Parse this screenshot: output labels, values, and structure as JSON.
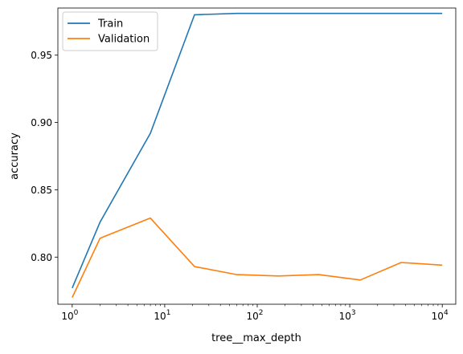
{
  "chart_data": {
    "type": "line",
    "xscale": "log",
    "xlabel": "tree__max_depth",
    "ylabel": "accuracy",
    "xlim": [
      0.7,
      14000
    ],
    "ylim": [
      0.765,
      0.985
    ],
    "xticks": [
      {
        "value": 1,
        "base": "10",
        "exp": "0"
      },
      {
        "value": 10,
        "base": "10",
        "exp": "1"
      },
      {
        "value": 100,
        "base": "10",
        "exp": "2"
      },
      {
        "value": 1000,
        "base": "10",
        "exp": "3"
      },
      {
        "value": 10000,
        "base": "10",
        "exp": "4"
      }
    ],
    "yticks": [
      0.8,
      0.85,
      0.9,
      0.95
    ],
    "ytick_labels": [
      "0.80",
      "0.85",
      "0.90",
      "0.95"
    ],
    "grid": false,
    "legend": "top-left",
    "series": [
      {
        "name": "Train",
        "color": "#1f77b4",
        "x": [
          1,
          2,
          7,
          21,
          60,
          170,
          460,
          1300,
          3600,
          10000
        ],
        "y": [
          0.777,
          0.826,
          0.892,
          0.98,
          0.981,
          0.981,
          0.981,
          0.981,
          0.981,
          0.981
        ]
      },
      {
        "name": "Validation",
        "color": "#ff7f0e",
        "x": [
          1,
          2,
          7,
          21,
          60,
          170,
          460,
          1300,
          3600,
          10000
        ],
        "y": [
          0.77,
          0.814,
          0.829,
          0.793,
          0.787,
          0.786,
          0.787,
          0.783,
          0.796,
          0.794
        ]
      }
    ]
  }
}
